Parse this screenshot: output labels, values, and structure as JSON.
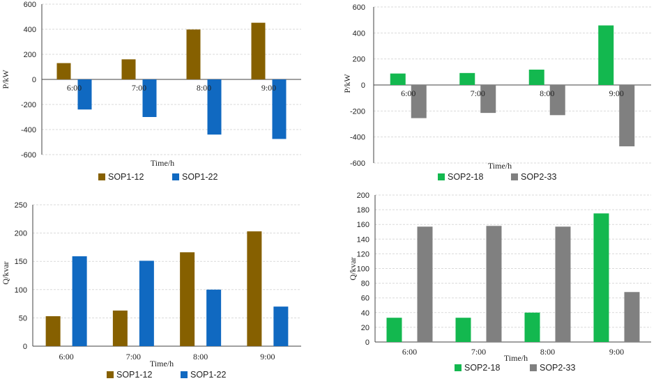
{
  "chart_data": [
    {
      "type": "bar",
      "id": "p-sop1",
      "categories": [
        "6:00",
        "7:00",
        "8:00",
        "9:00"
      ],
      "series": [
        {
          "name": "SOP1-12",
          "values": [
            130,
            160,
            398,
            452
          ],
          "color": "#866000"
        },
        {
          "name": "SOP1-22",
          "values": [
            -240,
            -300,
            -440,
            -475
          ],
          "color": "#1069c1"
        }
      ],
      "xlabel": "Time/h",
      "ylabel": "P/kW",
      "ylim": [
        -600,
        600
      ],
      "yticks": [
        600,
        400,
        200,
        0,
        -200,
        -400,
        -600
      ],
      "grid": true,
      "legend": "bottom"
    },
    {
      "type": "bar",
      "id": "p-sop2",
      "categories": [
        "6:00",
        "7:00",
        "8:00",
        "9:00"
      ],
      "series": [
        {
          "name": "SOP2-18",
          "values": [
            88,
            92,
            118,
            458
          ],
          "color": "#13b84f"
        },
        {
          "name": "SOP2-33",
          "values": [
            -255,
            -215,
            -232,
            -472
          ],
          "color": "#808080"
        }
      ],
      "xlabel": "Time/h",
      "ylabel": "P/kW",
      "ylim": [
        -600,
        600
      ],
      "yticks": [
        600,
        400,
        200,
        0,
        -200,
        -400,
        -600
      ],
      "grid": true,
      "legend": "bottom"
    },
    {
      "type": "bar",
      "id": "q-sop1",
      "categories": [
        "6:00",
        "7:00",
        "8:00",
        "9:00"
      ],
      "series": [
        {
          "name": "SOP1-12",
          "values": [
            53,
            63,
            166,
            203
          ],
          "color": "#866000"
        },
        {
          "name": "SOP1-22",
          "values": [
            159,
            151,
            100,
            70
          ],
          "color": "#1069c1"
        }
      ],
      "xlabel": "Time/h",
      "ylabel": "Q/kvar",
      "ylim": [
        0,
        250
      ],
      "yticks": [
        250,
        200,
        150,
        100,
        50,
        0
      ],
      "grid": true,
      "legend": "bottom"
    },
    {
      "type": "bar",
      "id": "q-sop2",
      "categories": [
        "6:00",
        "7:00",
        "8:00",
        "9:00"
      ],
      "series": [
        {
          "name": "SOP2-18",
          "values": [
            33,
            33,
            40,
            175
          ],
          "color": "#13b84f"
        },
        {
          "name": "SOP2-33",
          "values": [
            157,
            158,
            157,
            68
          ],
          "color": "#808080"
        }
      ],
      "xlabel": "Time/h",
      "ylabel": "Q/kvar",
      "ylim": [
        0,
        200
      ],
      "yticks": [
        200,
        180,
        160,
        140,
        120,
        100,
        80,
        60,
        40,
        20,
        0
      ],
      "grid": true,
      "legend": "bottom"
    }
  ]
}
